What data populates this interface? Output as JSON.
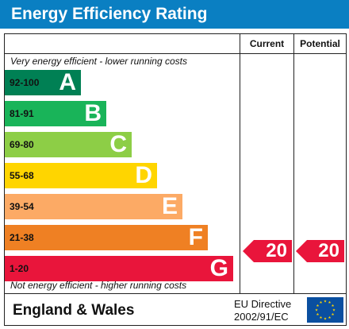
{
  "header": {
    "title": "Energy Efficiency Rating"
  },
  "columns": {
    "current": "Current",
    "potential": "Potential"
  },
  "notes": {
    "top": "Very energy efficient - lower running costs",
    "bottom": "Not energy efficient - higher running costs"
  },
  "bands": [
    {
      "range": "92-100",
      "letter": "A",
      "color": "#008054"
    },
    {
      "range": "81-91",
      "letter": "B",
      "color": "#19b459"
    },
    {
      "range": "69-80",
      "letter": "C",
      "color": "#8dce46"
    },
    {
      "range": "55-68",
      "letter": "D",
      "color": "#ffd500"
    },
    {
      "range": "39-54",
      "letter": "E",
      "color": "#fcaa65"
    },
    {
      "range": "21-38",
      "letter": "F",
      "color": "#ef8023"
    },
    {
      "range": "1-20",
      "letter": "G",
      "color": "#e9153b"
    }
  ],
  "ratings": {
    "current": "20",
    "potential": "20",
    "band_letter": "G",
    "color": "#e9153b"
  },
  "footer": {
    "region": "England & Wales",
    "directive_line1": "EU Directive",
    "directive_line2": "2002/91/EC",
    "flag_icon": "eu-flag-icon"
  }
}
